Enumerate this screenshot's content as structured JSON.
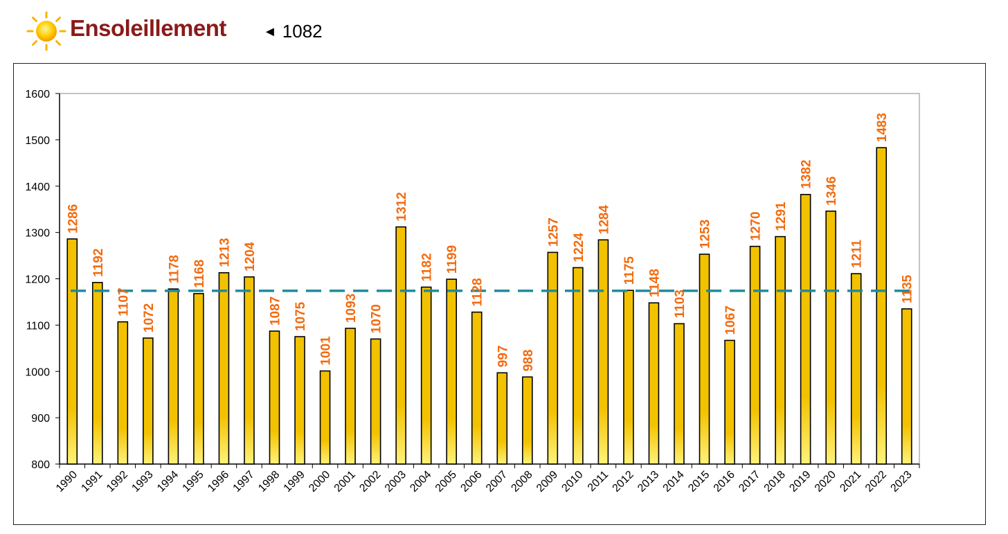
{
  "header": {
    "title": "Ensoleillement",
    "reference_marker": "◄",
    "reference_value": "1082",
    "title_color": "#8b1a1a"
  },
  "chart_data": {
    "type": "bar",
    "title": "Ensoleillement",
    "xlabel": "",
    "ylabel": "",
    "ylim": [
      800,
      1600
    ],
    "yticks": [
      800,
      900,
      1000,
      1100,
      1200,
      1300,
      1400,
      1500,
      1600
    ],
    "categories": [
      "1990",
      "1991",
      "1992",
      "1993",
      "1994",
      "1995",
      "1996",
      "1997",
      "1998",
      "1999",
      "2000",
      "2001",
      "2002",
      "2003",
      "2004",
      "2005",
      "2006",
      "2007",
      "2008",
      "2009",
      "2010",
      "2011",
      "2012",
      "2013",
      "2014",
      "2015",
      "2016",
      "2017",
      "2018",
      "2019",
      "2020",
      "2021",
      "2022",
      "2023"
    ],
    "values": [
      1286,
      1192,
      1107,
      1072,
      1178,
      1168,
      1213,
      1204,
      1087,
      1075,
      1001,
      1093,
      1070,
      1312,
      1182,
      1199,
      1128,
      997,
      988,
      1257,
      1224,
      1284,
      1175,
      1148,
      1103,
      1253,
      1067,
      1270,
      1291,
      1382,
      1346,
      1211,
      1483,
      1135
    ],
    "average_line": 1174,
    "grid": false,
    "legend": "none",
    "colors": {
      "bar_top": "#f2c200",
      "bar_bottom": "#fff27a",
      "bar_border": "#000000",
      "data_label": "#f26b0f",
      "average_line": "#1f8a9b"
    }
  }
}
